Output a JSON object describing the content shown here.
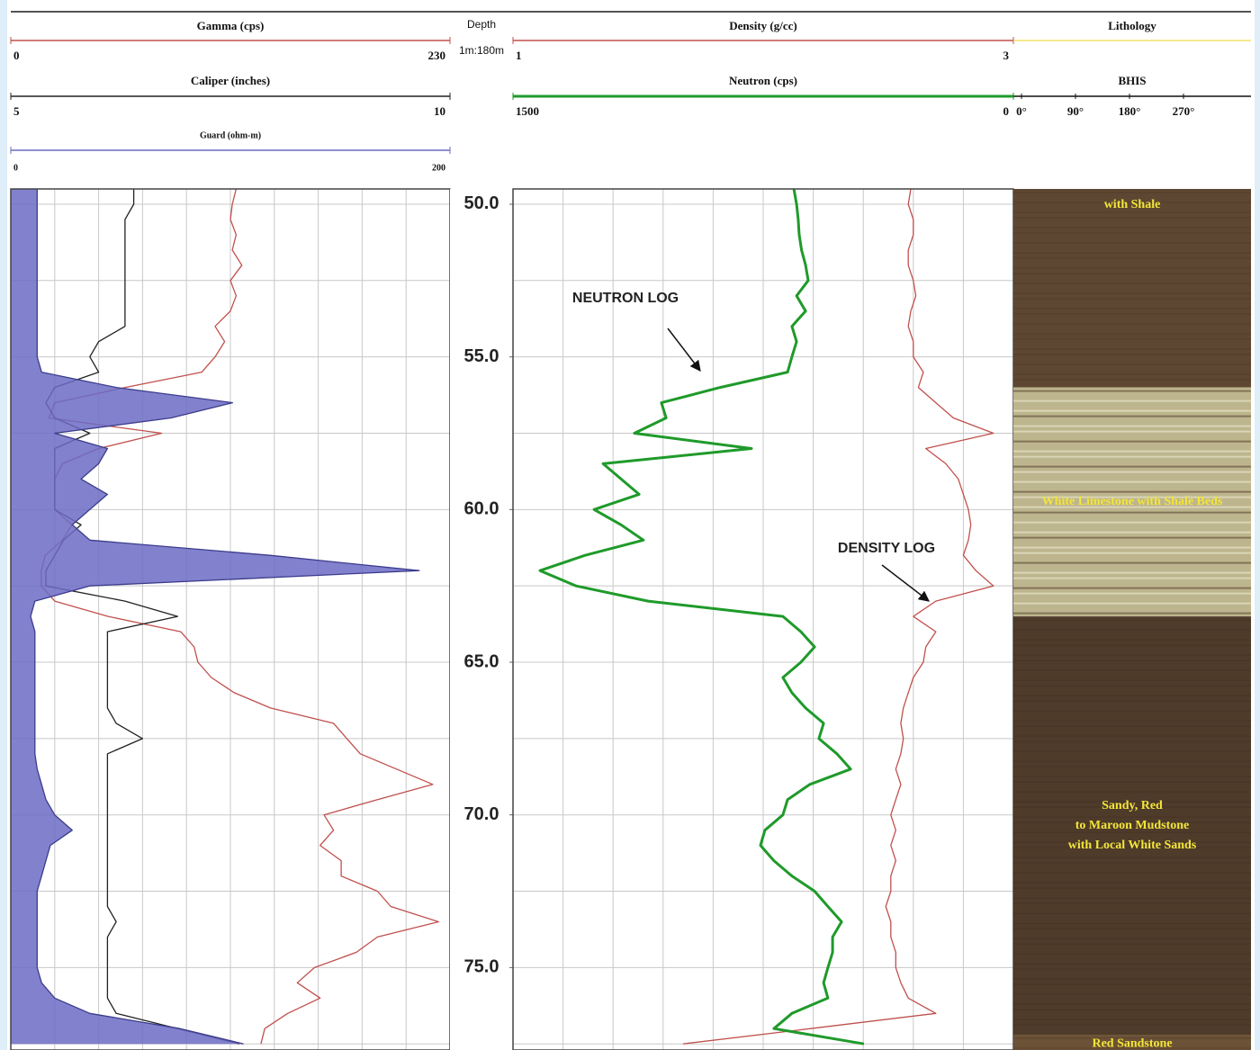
{
  "chart_data": [
    {
      "type": "log-track",
      "x": [
        49.5,
        50,
        50.5,
        51,
        51.5,
        52,
        52.5,
        53,
        53.5,
        54,
        54.5,
        55,
        55.5,
        56,
        56.5,
        57,
        57.5,
        58,
        58.5,
        59,
        59.5,
        60,
        60.5,
        61,
        61.5,
        62,
        62.5,
        63,
        63.5,
        64,
        64.5,
        65,
        65.5,
        66,
        66.5,
        67,
        67.5,
        68,
        68.5,
        69,
        69.5,
        70,
        70.5,
        71,
        71.5,
        72,
        72.5,
        73,
        73.5,
        74,
        74.5,
        75,
        75.5,
        76,
        76.5,
        77,
        77.5
      ],
      "xlim": [
        49.5,
        77.7
      ],
      "xgrid": [
        50,
        52.5,
        55,
        57.5,
        60,
        62.5,
        65,
        67.5,
        70,
        72.5,
        75,
        77.5
      ],
      "ygrid": [
        23,
        46,
        69,
        92,
        115,
        138,
        161,
        184,
        207
      ],
      "series": [
        {
          "name": "Gamma (cps)",
          "color": "#c0504d",
          "ylim": [
            0,
            230
          ],
          "yticks": [
            0,
            230
          ],
          "values": [
            118,
            116,
            115,
            118,
            116,
            121,
            115,
            118,
            115,
            107,
            112,
            107,
            100,
            60,
            23,
            20,
            79,
            46,
            27,
            23,
            23,
            23,
            32,
            27,
            18,
            16,
            16,
            23,
            51,
            89,
            96,
            98,
            105,
            117,
            136,
            169,
            176,
            183,
            202,
            221,
            192,
            164,
            169,
            162,
            173,
            173,
            192,
            199,
            224,
            192,
            181,
            159,
            150,
            162,
            145,
            133,
            131
          ]
        },
        {
          "name": "Caliper (inches)",
          "color": "#222222",
          "ylim": [
            5,
            10
          ],
          "yticks": [
            5,
            10
          ],
          "values": [
            6.4,
            6.4,
            6.3,
            6.3,
            6.3,
            6.3,
            6.3,
            6.3,
            6.3,
            6.3,
            6.0,
            5.9,
            6.0,
            5.5,
            5.4,
            5.5,
            5.9,
            5.5,
            5.5,
            5.5,
            5.5,
            5.5,
            5.8,
            5.6,
            5.5,
            5.4,
            5.4,
            6.3,
            6.9,
            6.1,
            6.1,
            6.1,
            6.1,
            6.1,
            6.1,
            6.2,
            6.5,
            6.1,
            6.1,
            6.1,
            6.1,
            6.1,
            6.1,
            6.1,
            6.1,
            6.1,
            6.1,
            6.1,
            6.2,
            6.1,
            6.1,
            6.1,
            6.1,
            6.1,
            6.2,
            6.9,
            7.6
          ]
        },
        {
          "name": "Guard (ohm-m)",
          "color": "#6b6bc4",
          "fill": true,
          "ylim": [
            0,
            200
          ],
          "yticks": [
            0,
            200
          ],
          "values": [
            12,
            12,
            12,
            12,
            12,
            12,
            12,
            12,
            12,
            12,
            12,
            12,
            14,
            48,
            101,
            73,
            20,
            44,
            40,
            32,
            44,
            36,
            28,
            36,
            118,
            186,
            36,
            11,
            9,
            11,
            11,
            11,
            11,
            11,
            11,
            11,
            11,
            11,
            12,
            14,
            16,
            20,
            28,
            18,
            16,
            14,
            12,
            12,
            12,
            12,
            12,
            12,
            14,
            20,
            36,
            77,
            106
          ]
        }
      ]
    },
    {
      "type": "depth",
      "title": "Depth",
      "subtitle": "1m:180m",
      "xlim": [
        49.5,
        77.7
      ],
      "xticks": [
        {
          "value": 50,
          "label": "50.0"
        },
        {
          "value": 55,
          "label": "55.0"
        },
        {
          "value": 60,
          "label": "60.0"
        },
        {
          "value": 65,
          "label": "65.0"
        },
        {
          "value": 70,
          "label": "70.0"
        },
        {
          "value": 75,
          "label": "75.0"
        }
      ]
    },
    {
      "type": "log-track",
      "x": [
        49.5,
        50,
        50.5,
        51,
        51.5,
        52,
        52.5,
        53,
        53.5,
        54,
        54.5,
        55,
        55.5,
        56,
        56.5,
        57,
        57.5,
        58,
        58.5,
        59,
        59.5,
        60,
        60.5,
        61,
        61.5,
        62,
        62.5,
        63,
        63.5,
        64,
        64.5,
        65,
        65.5,
        66,
        66.5,
        67,
        67.5,
        68,
        68.5,
        69,
        69.5,
        70,
        70.5,
        71,
        71.5,
        72,
        72.5,
        73,
        73.5,
        74,
        74.5,
        75,
        75.5,
        76,
        76.5,
        77,
        77.5
      ],
      "xlim": [
        49.5,
        77.7
      ],
      "xgrid": [
        50,
        52.5,
        55,
        57.5,
        60,
        62.5,
        65,
        67.5,
        70,
        72.5,
        75,
        77.5
      ],
      "ygrid": [
        1.2,
        1.4,
        1.6,
        1.8,
        2.0,
        2.2,
        2.4,
        2.6,
        2.8
      ],
      "annotations": [
        {
          "text": "NEUTRON LOG"
        },
        {
          "text": "DENSITY LOG"
        }
      ],
      "series": [
        {
          "name": "Density (g/cc)",
          "color": "#c0504d",
          "ylim": [
            1,
            3
          ],
          "yticks": [
            1,
            3
          ],
          "values": [
            2.59,
            2.58,
            2.6,
            2.6,
            2.58,
            2.58,
            2.6,
            2.61,
            2.59,
            2.58,
            2.6,
            2.6,
            2.64,
            2.62,
            2.69,
            2.76,
            2.92,
            2.65,
            2.73,
            2.78,
            2.8,
            2.82,
            2.83,
            2.82,
            2.8,
            2.85,
            2.92,
            2.69,
            2.6,
            2.69,
            2.65,
            2.64,
            2.6,
            2.58,
            2.56,
            2.55,
            2.56,
            2.55,
            2.53,
            2.55,
            2.53,
            2.51,
            2.53,
            2.51,
            2.53,
            2.51,
            2.51,
            2.49,
            2.51,
            2.51,
            2.53,
            2.53,
            2.55,
            2.58,
            2.69,
            2.19,
            1.68
          ]
        },
        {
          "name": "Neutron (cps)",
          "color": "#1f9a2a",
          "width": 3,
          "ylim": [
            1500,
            0
          ],
          "yticks": [
            1500,
            0
          ],
          "values": [
            658,
            650,
            645,
            642,
            635,
            623,
            615,
            650,
            623,
            664,
            650,
            664,
            677,
            879,
            1055,
            1041,
            1136,
            785,
            1230,
            1176,
            1122,
            1257,
            1176,
            1109,
            1284,
            1419,
            1311,
            1095,
            691,
            637,
            596,
            637,
            691,
            664,
            623,
            569,
            583,
            529,
            488,
            610,
            677,
            691,
            745,
            758,
            718,
            664,
            596,
            556,
            515,
            542,
            542,
            556,
            569,
            556,
            664,
            718,
            448
          ]
        }
      ]
    },
    {
      "type": "lithology",
      "title": "Lithology",
      "color": "#f0e26a",
      "xlim": [
        49.5,
        77.7
      ],
      "bhis": {
        "title": "BHIS",
        "xlim": [
          0,
          360
        ],
        "xticks": [
          {
            "value": 0,
            "label": "0°"
          },
          {
            "value": 90,
            "label": "90°"
          },
          {
            "value": 180,
            "label": "180°"
          },
          {
            "value": 270,
            "label": "270°"
          }
        ]
      },
      "units": [
        {
          "label": [
            "with Shale"
          ],
          "top": 49.5,
          "bottom": 56,
          "color": "#5e4732"
        },
        {
          "label": [
            "White Limestone with Shale Beds"
          ],
          "top": 56,
          "bottom": 63.5,
          "color": "#bdb58e"
        },
        {
          "label": [
            "Sandy, Red",
            "to Maroon Mudstone",
            "with Local White Sands"
          ],
          "top": 63.5,
          "bottom": 77.2,
          "color": "#4f3b2a"
        },
        {
          "label": [
            "Red Sandstone"
          ],
          "top": 77.2,
          "bottom": 77.7,
          "color": "#6c5236"
        }
      ]
    }
  ]
}
